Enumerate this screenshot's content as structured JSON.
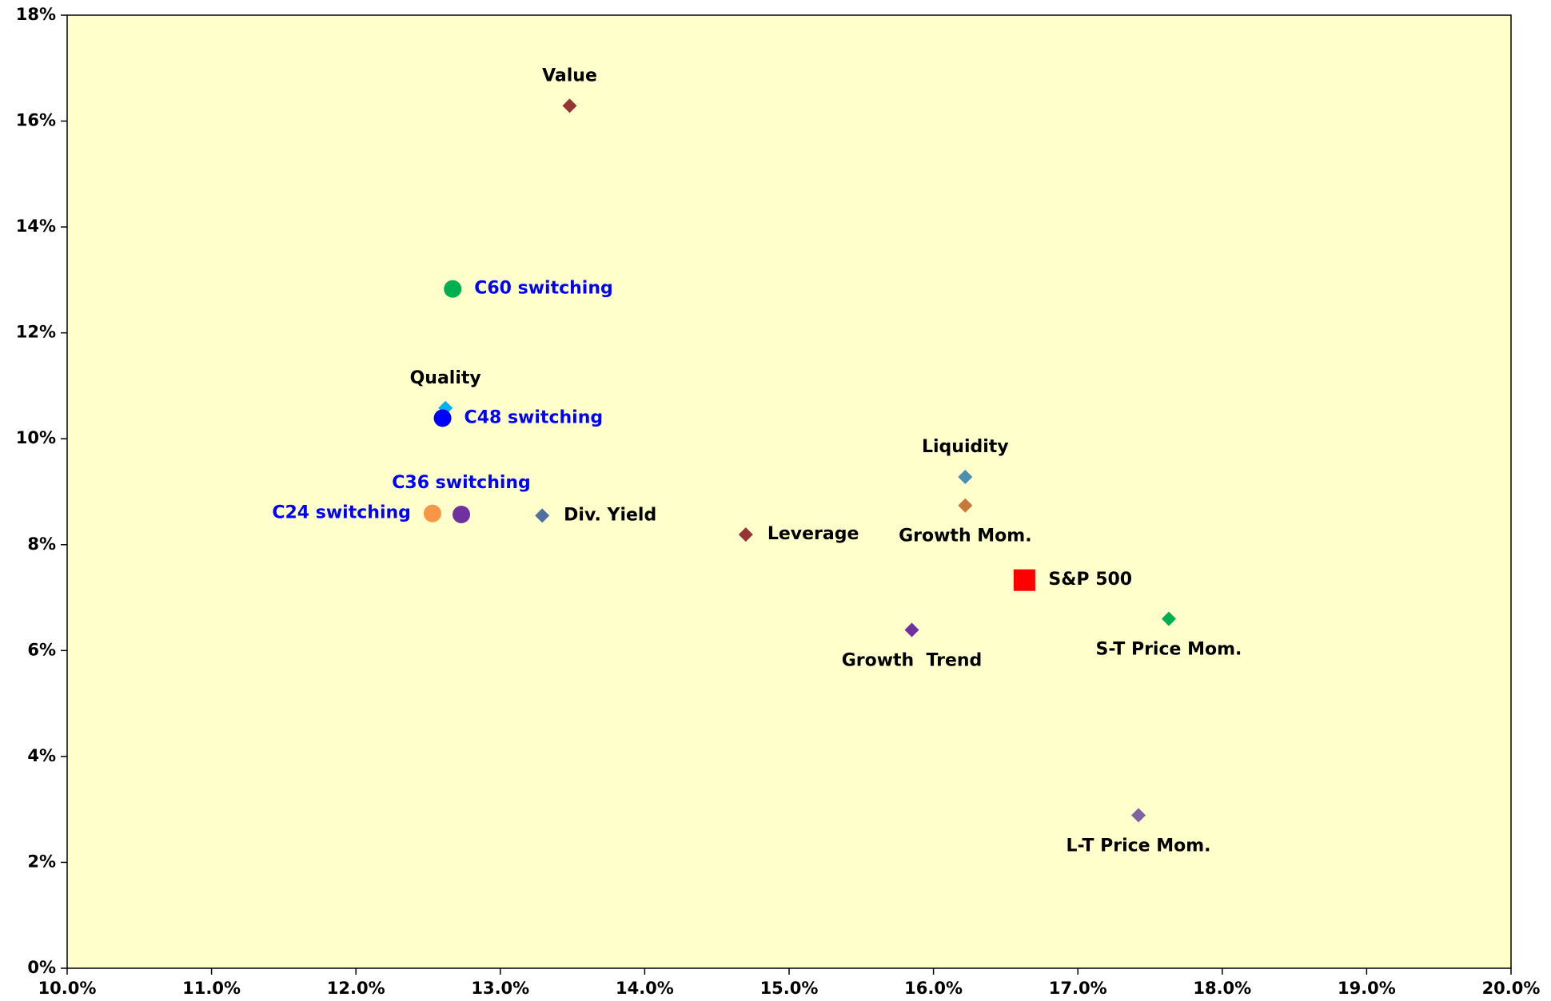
{
  "chart_data": {
    "type": "scatter",
    "xlim": [
      10,
      20
    ],
    "xticks": [
      {
        "value": 10,
        "label": "10.0%"
      },
      {
        "value": 11,
        "label": "11.0%"
      },
      {
        "value": 12,
        "label": "12.0%"
      },
      {
        "value": 13,
        "label": "13.0%"
      },
      {
        "value": 14,
        "label": "14.0%"
      },
      {
        "value": 15,
        "label": "15.0%"
      },
      {
        "value": 16,
        "label": "16.0%"
      },
      {
        "value": 17,
        "label": "17.0%"
      },
      {
        "value": 18,
        "label": "18.0%"
      },
      {
        "value": 19,
        "label": "19.0%"
      },
      {
        "value": 20,
        "label": "20.0%"
      }
    ],
    "ylim": [
      0,
      18
    ],
    "yticks": [
      {
        "value": 0,
        "label": "0%"
      },
      {
        "value": 2,
        "label": "2%"
      },
      {
        "value": 4,
        "label": "4%"
      },
      {
        "value": 6,
        "label": "6%"
      },
      {
        "value": 8,
        "label": "8%"
      },
      {
        "value": 10,
        "label": "10%"
      },
      {
        "value": 12,
        "label": "12%"
      },
      {
        "value": 14,
        "label": "14%"
      },
      {
        "value": 16,
        "label": "16%"
      },
      {
        "value": 18,
        "label": "18%"
      }
    ],
    "background": "#ffffcc",
    "series": [
      {
        "name": "Value",
        "color": "#943634",
        "marker": "diamond",
        "label_color": "#000000",
        "x": [
          13.48
        ],
        "values": [
          16.29
        ]
      },
      {
        "name": "C60 switching",
        "color": "#00b050",
        "marker": "circle",
        "label_color": "#0000ff",
        "x": [
          12.67
        ],
        "values": [
          12.83
        ]
      },
      {
        "name": "Quality",
        "color": "#00b0f0",
        "marker": "diamond",
        "label_color": "#000000",
        "x": [
          12.62
        ],
        "values": [
          10.58
        ]
      },
      {
        "name": "C48 switching",
        "color": "#0000ff",
        "marker": "circle",
        "label_color": "#0000ff",
        "x": [
          12.6
        ],
        "values": [
          10.39
        ]
      },
      {
        "name": "C36 switching",
        "color": "#7030a0",
        "marker": "circle",
        "label_color": "#0000ff",
        "x": [
          12.73
        ],
        "values": [
          8.57
        ]
      },
      {
        "name": "C24 switching",
        "color": "#f79646",
        "marker": "circle",
        "label_color": "#0000ff",
        "x": [
          12.53
        ],
        "values": [
          8.59
        ]
      },
      {
        "name": "Div. Yield",
        "color": "#4f6f9f",
        "marker": "diamond",
        "label_color": "#000000",
        "x": [
          13.29
        ],
        "values": [
          8.55
        ]
      },
      {
        "name": "Leverage",
        "color": "#943634",
        "marker": "diamond",
        "label_color": "#000000",
        "x": [
          14.7
        ],
        "values": [
          8.19
        ]
      },
      {
        "name": "Liquidity",
        "color": "#4a8fb0",
        "marker": "diamond",
        "label_color": "#000000",
        "x": [
          16.22
        ],
        "values": [
          9.28
        ]
      },
      {
        "name": "Growth Mom.",
        "color": "#c8783a",
        "marker": "diamond",
        "label_color": "#000000",
        "x": [
          16.22
        ],
        "values": [
          8.74
        ]
      },
      {
        "name": "S&P 500",
        "color": "#ff0000",
        "marker": "square",
        "label_color": "#000000",
        "x": [
          16.63
        ],
        "values": [
          7.33
        ]
      },
      {
        "name": "Growth  Trend",
        "color": "#7030a0",
        "marker": "diamond",
        "label_color": "#000000",
        "x": [
          15.85
        ],
        "values": [
          6.39
        ]
      },
      {
        "name": "S-T Price Mom.",
        "color": "#00b050",
        "marker": "diamond",
        "label_color": "#000000",
        "x": [
          17.63
        ],
        "values": [
          6.6
        ]
      },
      {
        "name": "L-T Price Mom.",
        "color": "#8064a2",
        "marker": "diamond",
        "label_color": "#000000",
        "x": [
          17.42
        ],
        "values": [
          2.89
        ]
      }
    ]
  }
}
